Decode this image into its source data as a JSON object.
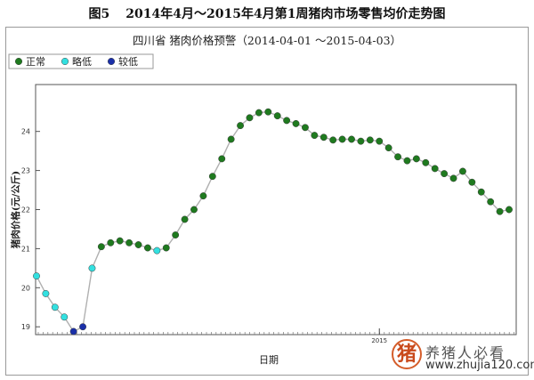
{
  "figure": {
    "number": "图5",
    "caption": "2014年4月～2015年4月第1周猪肉市场零售均价走势图"
  },
  "chart_data": {
    "type": "line",
    "title": "四川省 猪肉价格预警（2014-04-01 ～2015-04-03）",
    "xlabel": "日期",
    "ylabel": "猪肉价格(元/公斤)",
    "ylim": [
      18.8,
      25.2
    ],
    "y_ticks": [
      19,
      20,
      21,
      22,
      23,
      24
    ],
    "x_tick_labels": [
      "2015"
    ],
    "x_tick_value": 37,
    "legend": {
      "placement": "top-left",
      "entries": [
        {
          "label": "正常",
          "status": "normal"
        },
        {
          "label": "略低",
          "status": "slightly_low"
        },
        {
          "label": "较低",
          "status": "low"
        }
      ]
    },
    "status_colors": {
      "normal": "#1f7a1f",
      "slightly_low": "#33e0e0",
      "low": "#1a2fa8"
    },
    "line_color": "#b0b0b0",
    "grid": false,
    "series": [
      {
        "x": [
          0,
          1,
          2,
          3,
          4,
          5,
          6,
          7,
          8,
          9,
          10,
          11,
          12,
          13,
          14,
          15,
          16,
          17,
          18,
          19,
          20,
          21,
          22,
          23,
          24,
          25,
          26,
          27,
          28,
          29,
          30,
          31,
          32,
          33,
          34,
          35,
          36,
          37,
          38,
          39,
          40,
          41,
          42,
          43,
          44,
          45,
          46,
          47,
          48,
          49,
          50,
          51
        ],
        "values": [
          20.3,
          19.85,
          19.5,
          19.25,
          18.88,
          19.0,
          20.5,
          21.05,
          21.15,
          21.2,
          21.15,
          21.1,
          21.02,
          20.95,
          21.02,
          21.35,
          21.75,
          22.0,
          22.35,
          22.85,
          23.3,
          23.8,
          24.15,
          24.35,
          24.48,
          24.5,
          24.4,
          24.28,
          24.2,
          24.1,
          23.9,
          23.85,
          23.78,
          23.8,
          23.8,
          23.75,
          23.78,
          23.75,
          23.58,
          23.35,
          23.25,
          23.3,
          23.2,
          23.05,
          22.92,
          22.8,
          22.98,
          22.7,
          22.45,
          22.2,
          21.95,
          22.0
        ],
        "status": [
          "slightly_low",
          "slightly_low",
          "slightly_low",
          "slightly_low",
          "low",
          "low",
          "slightly_low",
          "normal",
          "normal",
          "normal",
          "normal",
          "normal",
          "normal",
          "slightly_low",
          "normal",
          "normal",
          "normal",
          "normal",
          "normal",
          "normal",
          "normal",
          "normal",
          "normal",
          "normal",
          "normal",
          "normal",
          "normal",
          "normal",
          "normal",
          "normal",
          "normal",
          "normal",
          "normal",
          "normal",
          "normal",
          "normal",
          "normal",
          "normal",
          "normal",
          "normal",
          "normal",
          "normal",
          "normal",
          "normal",
          "normal",
          "normal",
          "normal",
          "normal",
          "normal",
          "normal",
          "normal",
          "normal"
        ]
      }
    ]
  },
  "watermark": {
    "seal_char": "猪",
    "name": "养猪人必看",
    "url": "www.zhujia120.com"
  }
}
